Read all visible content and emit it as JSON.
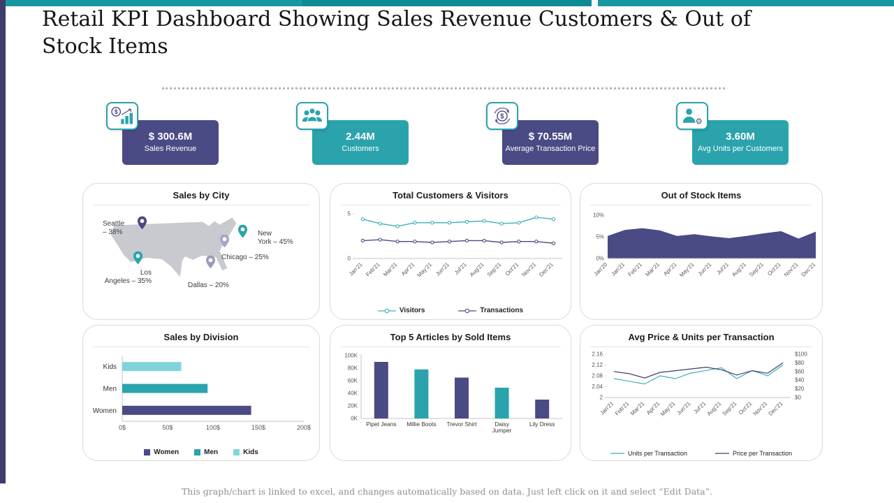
{
  "page": {
    "title": "Retail KPI Dashboard Showing Sales Revenue Customers & Out of Stock Items",
    "footer": "This graph/chart is linked to excel, and changes automatically based on data. Just left click on it and select “Edit Data”."
  },
  "theme": {
    "teal": "#2AA3AD",
    "teal_dark": "#0D8A94",
    "teal_light": "#82D4DB",
    "indigo": "#4A4A85",
    "indigo_dark": "#3C3C6E",
    "map_gray": "#c9cacf"
  },
  "kpis": [
    {
      "icon": "sales-revenue-icon",
      "value": "$ 300.6M",
      "label": "Sales Revenue",
      "bg": "#4A4A85"
    },
    {
      "icon": "customers-icon",
      "value": "2.44M",
      "label": "Customers",
      "bg": "#2AA3AD"
    },
    {
      "icon": "avg-transaction-price-icon",
      "value": "$ 70.55M",
      "label": "Average Transaction Price",
      "bg": "#4A4A85"
    },
    {
      "icon": "avg-units-per-customer-icon",
      "value": "3.60M",
      "label": "Avg Units per Customers",
      "bg": "#2AA3AD"
    }
  ],
  "chart_data": [
    {
      "type": "map",
      "title": "Sales by City",
      "cities": [
        {
          "name": "Seattle",
          "value": "38%",
          "label": "Seattle\n– 38%",
          "pin_color": "#4A4A85",
          "pin": {
            "x": 84,
            "y": 30
          },
          "label_pos": {
            "x": 28,
            "y": 16,
            "w": 56,
            "align": "left"
          }
        },
        {
          "name": "New York",
          "value": "45%",
          "label": "New\nYork – 45%",
          "pin_color": "#2AA3AD",
          "pin": {
            "x": 228,
            "y": 42
          },
          "label_pos": {
            "x": 250,
            "y": 30,
            "w": 66,
            "align": "left"
          }
        },
        {
          "name": "Chicago",
          "value": "25%",
          "label": "Chicago – 25%",
          "pin_color": "#A6A6C8",
          "pin": {
            "x": 202,
            "y": 56
          },
          "label_pos": {
            "x": 198,
            "y": 64,
            "w": 90,
            "align": "left"
          }
        },
        {
          "name": "Los Angeles",
          "value": "35%",
          "label": "Los\nAngeles – 35%",
          "pin_color": "#2AA3AD",
          "pin": {
            "x": 78,
            "y": 80
          },
          "label_pos": {
            "x": 26,
            "y": 86,
            "w": 72,
            "align": "right"
          }
        },
        {
          "name": "Dallas",
          "value": "20%",
          "label": "Dallas – 20%",
          "pin_color": "#9C9CB8",
          "pin": {
            "x": 182,
            "y": 86
          },
          "label_pos": {
            "x": 150,
            "y": 104,
            "w": 80,
            "align": "left"
          }
        }
      ]
    },
    {
      "type": "line",
      "title": "Total Customers & Visitors",
      "x": [
        "Jan'21",
        "Feb'21",
        "Mar'21",
        "Apr'21",
        "May'21",
        "Jun'21",
        "Jul'21",
        "Aug'21",
        "Sep'21",
        "Oct'21",
        "Nov'21",
        "Dec'21"
      ],
      "series": [
        {
          "name": "Visitors",
          "color": "#3FAFB8",
          "values": [
            4.4,
            3.9,
            3.6,
            4.0,
            4.0,
            4.0,
            4.1,
            4.2,
            3.9,
            4.0,
            4.6,
            4.4
          ]
        },
        {
          "name": "Transactions",
          "color": "#4A4A85",
          "values": [
            2.0,
            2.1,
            1.9,
            1.9,
            1.8,
            1.9,
            2.0,
            2.0,
            1.8,
            1.9,
            1.9,
            1.7
          ]
        }
      ],
      "ylim": [
        0,
        5
      ],
      "yticks": [
        {
          "value": 0,
          "label": "0"
        },
        {
          "value": 5,
          "label": "5"
        }
      ],
      "legend_position": "bottom"
    },
    {
      "type": "area",
      "title": "Out of Stock Items",
      "x": [
        "Jan'20",
        "Jan'21",
        "Feb'21",
        "Mar'21",
        "Apr'21",
        "May'21",
        "Jun'21",
        "Jul'21",
        "Aug'21",
        "Sep'21",
        "Oct'21",
        "Nov'21",
        "Dec'21"
      ],
      "values": [
        5.2,
        6.6,
        7.0,
        6.5,
        5.2,
        5.6,
        5.1,
        4.7,
        5.2,
        5.8,
        6.3,
        4.6,
        6.2
      ],
      "color": "#4A4A85",
      "ylim": [
        0,
        10
      ],
      "yticks": [
        {
          "value": 0,
          "label": "0%"
        },
        {
          "value": 5,
          "label": "5%"
        },
        {
          "value": 10,
          "label": "10%"
        }
      ]
    },
    {
      "type": "bar",
      "orientation": "horizontal",
      "title": "Sales by Division",
      "categories": [
        "Kids",
        "Men",
        "Women"
      ],
      "values": [
        65,
        94,
        142
      ],
      "colors": [
        "#82D4DB",
        "#2AA3AD",
        "#4A4A85"
      ],
      "xlim": [
        0,
        200
      ],
      "xticks": [
        {
          "value": 0,
          "label": "0$"
        },
        {
          "value": 50,
          "label": "50$"
        },
        {
          "value": 100,
          "label": "100$"
        },
        {
          "value": 150,
          "label": "150$"
        },
        {
          "value": 200,
          "label": "200$"
        }
      ],
      "legend": [
        {
          "label": "Women",
          "color": "#4A4A85"
        },
        {
          "label": "Men",
          "color": "#2AA3AD"
        },
        {
          "label": "Kids",
          "color": "#82D4DB"
        }
      ]
    },
    {
      "type": "bar",
      "title": "Top 5 Articles by Sold Items",
      "categories": [
        "Pipet Jeans",
        "Millie Boots",
        "Trevor Shirt",
        "Daisy\nJumper",
        "Lily Dress"
      ],
      "values": [
        90000,
        78000,
        65000,
        49000,
        30000
      ],
      "colors": [
        "#4A4A85",
        "#2AA3AD",
        "#4A4A85",
        "#2AA3AD",
        "#4A4A85"
      ],
      "ylim": [
        0,
        100000
      ],
      "yticks": [
        {
          "value": 0,
          "label": "0K"
        },
        {
          "value": 20000,
          "label": "20K"
        },
        {
          "value": 40000,
          "label": "40K"
        },
        {
          "value": 60000,
          "label": "60K"
        },
        {
          "value": 80000,
          "label": "80K"
        },
        {
          "value": 100000,
          "label": "100K"
        }
      ]
    },
    {
      "type": "line",
      "title": "Avg Price & Units per Transaction",
      "x": [
        "Jan'21",
        "Feb'21",
        "Mar'21",
        "Apr'21",
        "May'21",
        "Jun'21",
        "Jul'21",
        "Aug'21",
        "Sep'21",
        "Oct'21",
        "Nov'21",
        "Dec'21"
      ],
      "series": [
        {
          "name": "Units per Transaction",
          "axis": "left",
          "color": "#3FAFB8",
          "values": [
            2.07,
            2.06,
            2.05,
            2.08,
            2.07,
            2.09,
            2.1,
            2.11,
            2.07,
            2.1,
            2.08,
            2.12
          ]
        },
        {
          "name": "Price per Transaction",
          "axis": "right",
          "color": "#3D3D6E",
          "values": [
            60,
            55,
            45,
            58,
            62,
            66,
            70,
            64,
            52,
            62,
            56,
            80
          ]
        }
      ],
      "ylim_left": [
        2,
        2.16
      ],
      "ylim_right": [
        0,
        100
      ],
      "yticks_left": [
        {
          "value": 2,
          "label": "2"
        },
        {
          "value": 2.04,
          "label": "2.04"
        },
        {
          "value": 2.08,
          "label": "2.08"
        },
        {
          "value": 2.12,
          "label": "2.12"
        },
        {
          "value": 2.16,
          "label": "2.16"
        }
      ],
      "yticks_right": [
        {
          "value": 0,
          "label": "$0"
        },
        {
          "value": 20,
          "label": "$20"
        },
        {
          "value": 40,
          "label": "$40"
        },
        {
          "value": 60,
          "label": "$60"
        },
        {
          "value": 80,
          "label": "$80"
        },
        {
          "value": 100,
          "label": "$100"
        }
      ]
    }
  ]
}
